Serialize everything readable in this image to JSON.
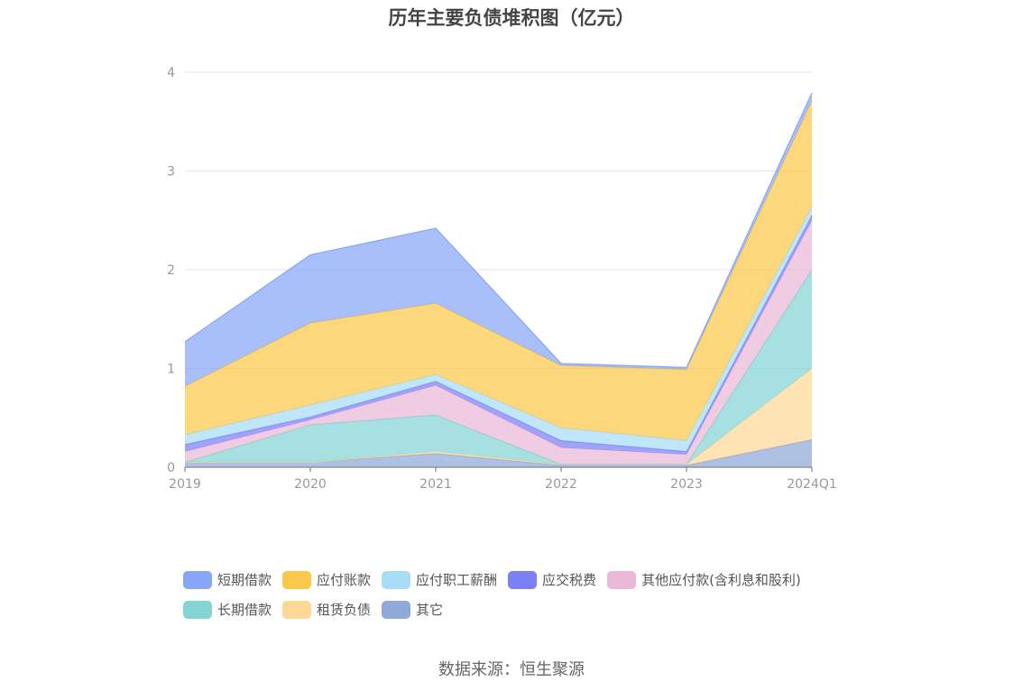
{
  "title": "历年主要负债堆积图（亿元）",
  "source": "数据来源：恒生聚源",
  "chart_data": {
    "type": "area",
    "stacked": true,
    "title": "历年主要负债堆积图（亿元）",
    "categories": [
      "2019",
      "2020",
      "2021",
      "2022",
      "2023",
      "2024Q1"
    ],
    "ylim": [
      0,
      4
    ],
    "yticks": [
      0,
      1,
      2,
      3,
      4
    ],
    "grid": true,
    "legend_position": "bottom",
    "series": [
      {
        "name": "其它",
        "color": "#8fa9d8",
        "values": [
          0.05,
          0.05,
          0.14,
          0.02,
          0.02,
          0.28
        ]
      },
      {
        "name": "租赁负债",
        "color": "#fdd898",
        "values": [
          0.0,
          0.0,
          0.02,
          0.01,
          0.01,
          0.72
        ]
      },
      {
        "name": "长期借款",
        "color": "#84d4d6",
        "values": [
          0.0,
          0.38,
          0.37,
          0.0,
          0.0,
          1.0
        ]
      },
      {
        "name": "其他应付款(含利息和股利)",
        "color": "#eab8d8",
        "values": [
          0.11,
          0.05,
          0.3,
          0.17,
          0.1,
          0.5
        ]
      },
      {
        "name": "应交税费",
        "color": "#7b80f5",
        "values": [
          0.07,
          0.03,
          0.04,
          0.07,
          0.03,
          0.05
        ]
      },
      {
        "name": "应付职工薪酬",
        "color": "#a8dcf6",
        "values": [
          0.1,
          0.12,
          0.07,
          0.13,
          0.11,
          0.09
        ]
      },
      {
        "name": "应付账款",
        "color": "#fcc849",
        "values": [
          0.49,
          0.83,
          0.72,
          0.63,
          0.72,
          1.07
        ]
      },
      {
        "name": "短期借款",
        "color": "#88a6f8",
        "values": [
          0.45,
          0.69,
          0.76,
          0.02,
          0.02,
          0.08
        ]
      }
    ],
    "legend_order": [
      "短期借款",
      "应付账款",
      "应付职工薪酬",
      "应交税费",
      "其他应付款(含利息和股利)",
      "长期借款",
      "租赁负债",
      "其它"
    ]
  }
}
